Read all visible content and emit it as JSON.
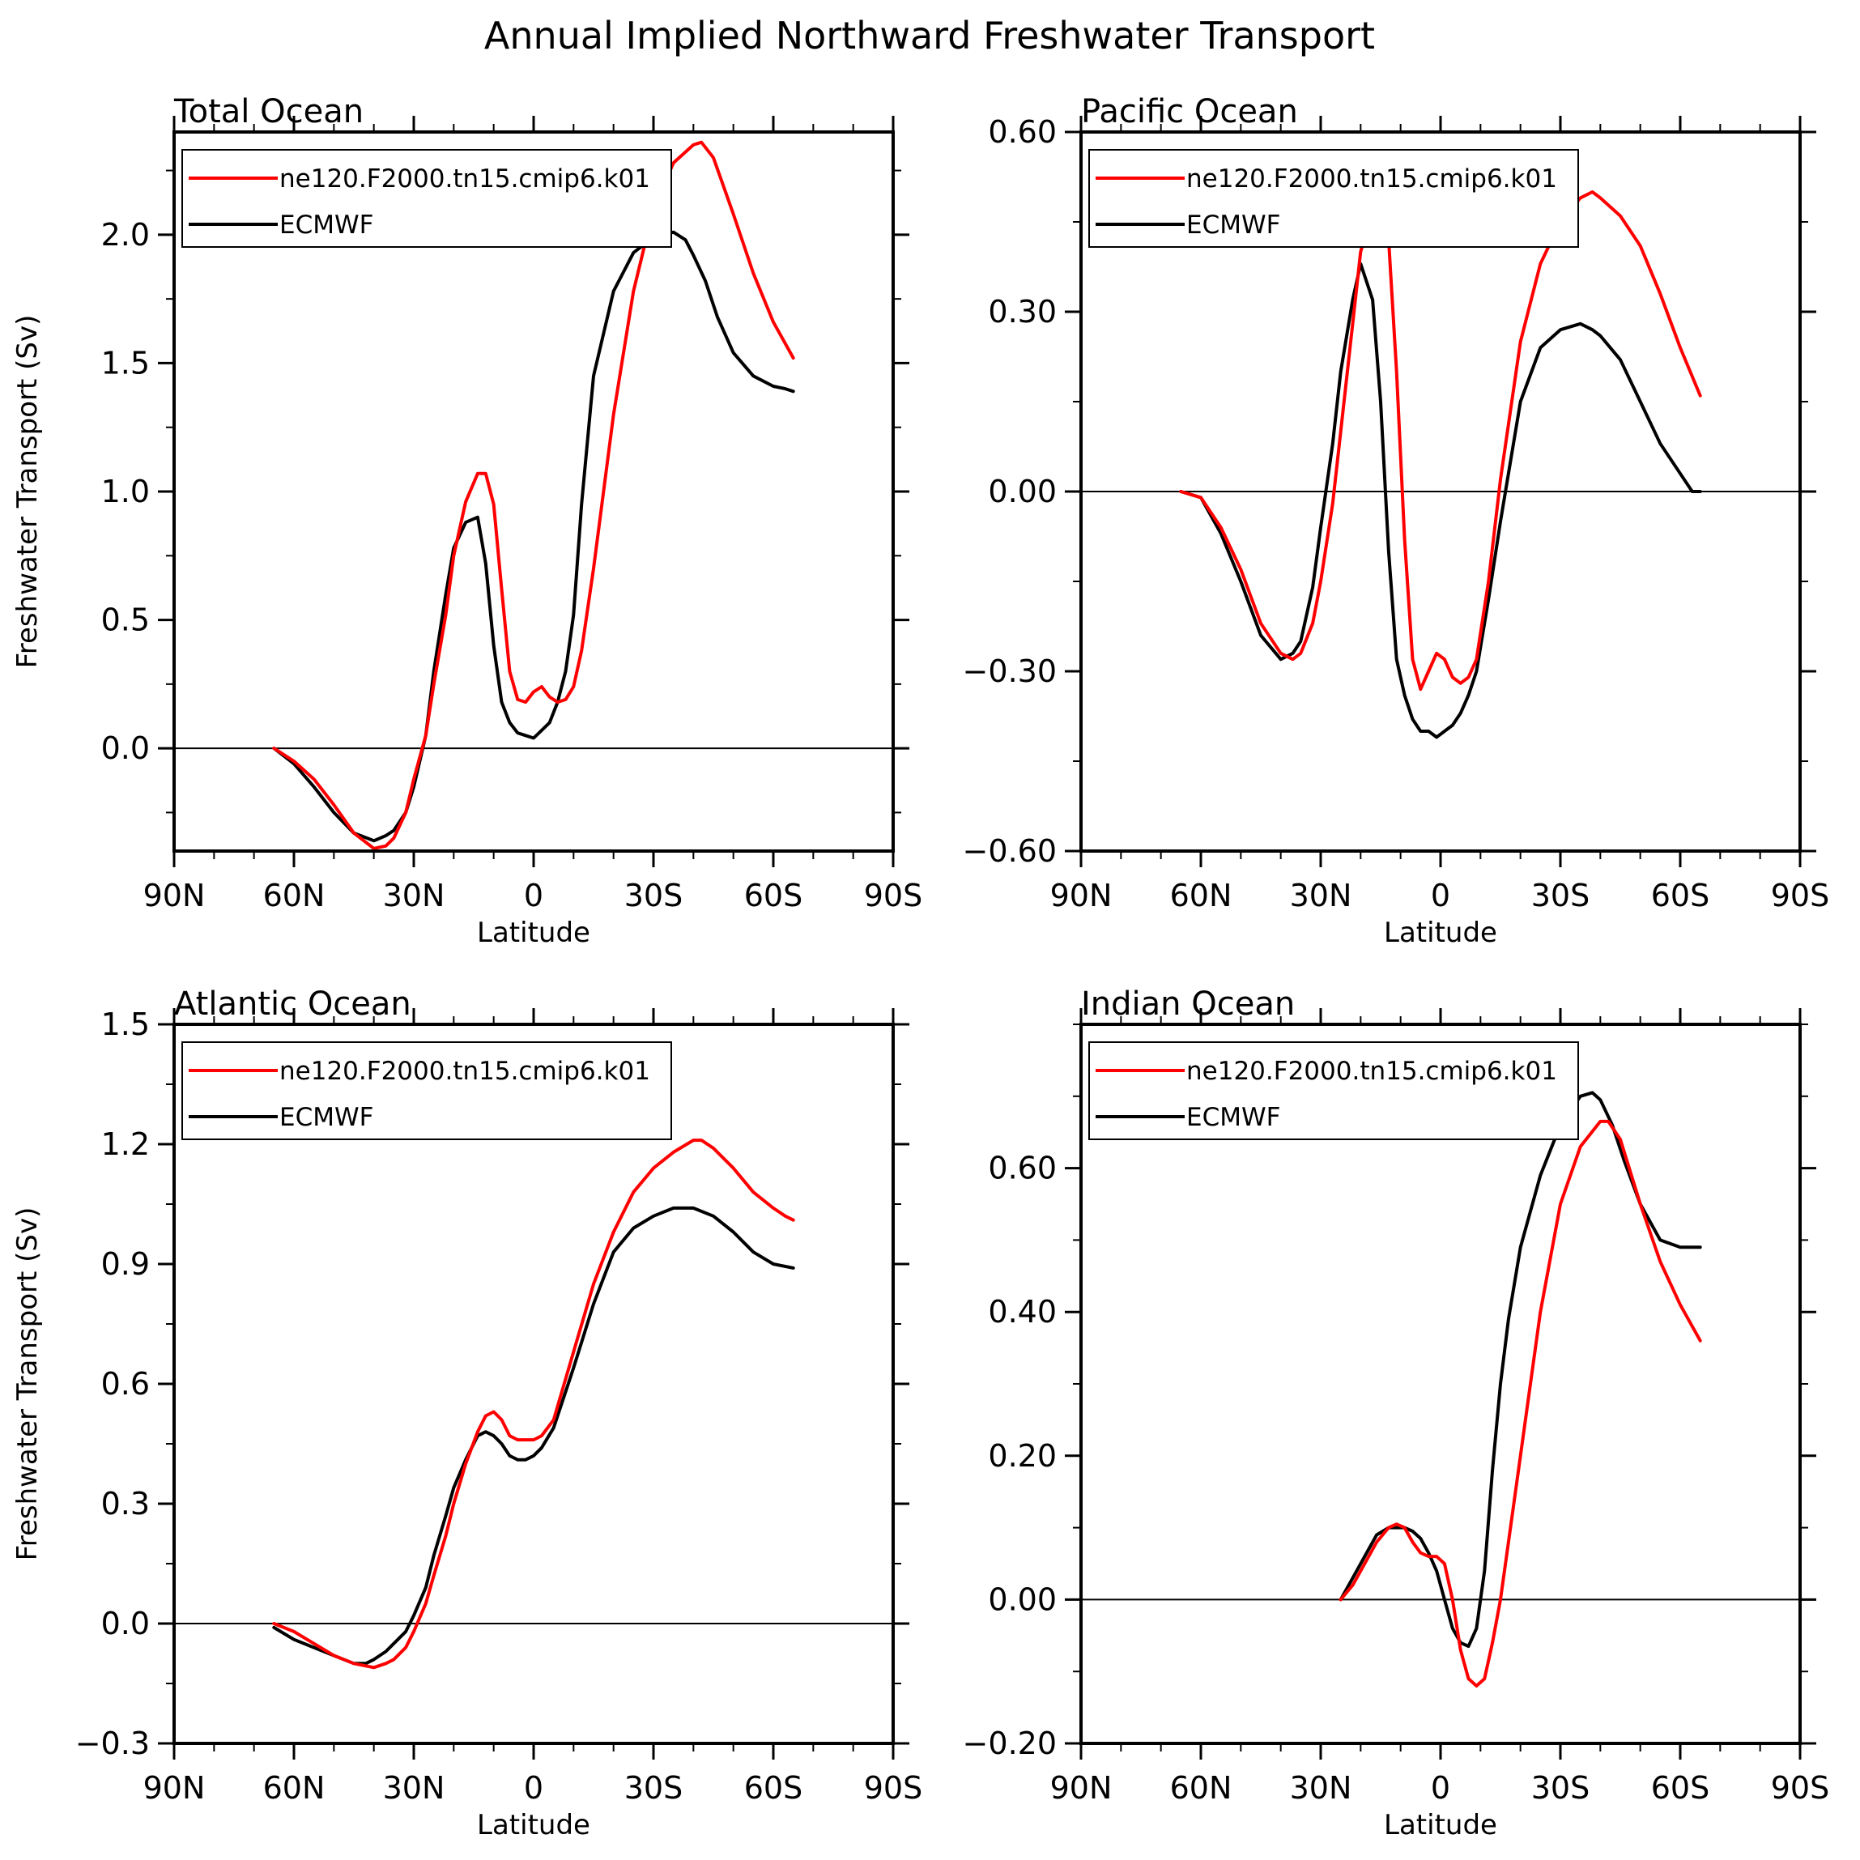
{
  "figure": {
    "title": "Annual Implied Northward Freshwater Transport"
  },
  "legend_entries": [
    {
      "label": "ne120.F2000.tn15.cmip6.k01",
      "color": "#ff0000"
    },
    {
      "label": "ECMWF",
      "color": "#000000"
    }
  ],
  "chart_data": [
    {
      "type": "line",
      "title": "Total Ocean",
      "xlabel": "Latitude",
      "ylabel": "Freshwater Transport (Sv)",
      "xlim": [
        90,
        -90
      ],
      "ylim": [
        -0.4,
        2.4
      ],
      "xticks": [
        90,
        60,
        30,
        0,
        -30,
        -60,
        -90
      ],
      "xtick_labels": [
        "90N",
        "60N",
        "30N",
        "0",
        "30S",
        "60S",
        "90S"
      ],
      "yticks": [
        0.0,
        0.5,
        1.0,
        1.5,
        2.0
      ],
      "ytick_labels": [
        "0.0",
        "0.5",
        "1.0",
        "1.5",
        "2.0"
      ],
      "ytick_side": "left",
      "grid": false,
      "zero_line": true,
      "legend_position": "top-left",
      "series": [
        {
          "name": "ne120.F2000.tn15.cmip6.k01",
          "color": "#ff0000",
          "x": [
            65,
            60,
            55,
            50,
            45,
            40,
            37,
            35,
            32,
            30,
            27,
            25,
            22,
            20,
            17,
            14,
            12,
            10,
            8,
            6,
            4,
            2,
            0,
            -2,
            -4,
            -6,
            -8,
            -10,
            -12,
            -15,
            -20,
            -25,
            -30,
            -35,
            -40,
            -42,
            -45,
            -50,
            -55,
            -60,
            -65
          ],
          "y": [
            0.0,
            -0.05,
            -0.12,
            -0.22,
            -0.33,
            -0.39,
            -0.38,
            -0.35,
            -0.25,
            -0.12,
            0.05,
            0.25,
            0.52,
            0.75,
            0.96,
            1.07,
            1.07,
            0.95,
            0.62,
            0.3,
            0.19,
            0.18,
            0.22,
            0.24,
            0.2,
            0.18,
            0.19,
            0.24,
            0.38,
            0.7,
            1.3,
            1.78,
            2.1,
            2.28,
            2.35,
            2.36,
            2.3,
            2.08,
            1.85,
            1.66,
            1.52
          ]
        },
        {
          "name": "ECMWF",
          "color": "#000000",
          "x": [
            65,
            60,
            55,
            50,
            45,
            40,
            37,
            35,
            32,
            30,
            27,
            25,
            22,
            20,
            17,
            14,
            12,
            10,
            8,
            6,
            4,
            2,
            0,
            -2,
            -4,
            -6,
            -8,
            -10,
            -12,
            -15,
            -20,
            -25,
            -30,
            -35,
            -38,
            -40,
            -43,
            -46,
            -50,
            -55,
            -60,
            -63,
            -65
          ],
          "y": [
            0.0,
            -0.06,
            -0.15,
            -0.25,
            -0.33,
            -0.36,
            -0.34,
            -0.32,
            -0.25,
            -0.15,
            0.05,
            0.3,
            0.6,
            0.78,
            0.88,
            0.9,
            0.72,
            0.4,
            0.18,
            0.1,
            0.06,
            0.05,
            0.04,
            0.07,
            0.1,
            0.18,
            0.3,
            0.52,
            0.95,
            1.45,
            1.78,
            1.93,
            1.99,
            2.01,
            1.98,
            1.92,
            1.82,
            1.68,
            1.54,
            1.45,
            1.41,
            1.4,
            1.39
          ]
        }
      ]
    },
    {
      "type": "line",
      "title": "Pacific Ocean",
      "xlabel": "Latitude",
      "ylabel": "",
      "xlim": [
        90,
        -90
      ],
      "ylim": [
        -0.6,
        0.6
      ],
      "xticks": [
        90,
        60,
        30,
        0,
        -30,
        -60,
        -90
      ],
      "xtick_labels": [
        "90N",
        "60N",
        "30N",
        "0",
        "30S",
        "60S",
        "90S"
      ],
      "yticks": [
        -0.6,
        -0.3,
        0.0,
        0.3,
        0.6
      ],
      "ytick_labels": [
        "−0.60",
        "−0.30",
        "0.00",
        "0.30",
        "0.60"
      ],
      "ytick_side": "left",
      "grid": false,
      "zero_line": true,
      "legend_position": "top-left",
      "series": [
        {
          "name": "ne120.F2000.tn15.cmip6.k01",
          "color": "#ff0000",
          "x": [
            65,
            60,
            55,
            50,
            45,
            40,
            37,
            35,
            32,
            30,
            27,
            25,
            22,
            20,
            17,
            15,
            13,
            11,
            9,
            7,
            5,
            3,
            1,
            -1,
            -3,
            -5,
            -7,
            -9,
            -12,
            -15,
            -20,
            -25,
            -30,
            -35,
            -38,
            -40,
            -45,
            -50,
            -55,
            -60,
            -65
          ],
          "y": [
            0.0,
            -0.01,
            -0.06,
            -0.13,
            -0.22,
            -0.27,
            -0.28,
            -0.27,
            -0.22,
            -0.15,
            -0.02,
            0.1,
            0.28,
            0.4,
            0.47,
            0.48,
            0.42,
            0.2,
            -0.08,
            -0.28,
            -0.33,
            -0.3,
            -0.27,
            -0.28,
            -0.31,
            -0.32,
            -0.31,
            -0.28,
            -0.15,
            0.02,
            0.25,
            0.38,
            0.45,
            0.49,
            0.5,
            0.49,
            0.46,
            0.41,
            0.33,
            0.24,
            0.16
          ]
        },
        {
          "name": "ECMWF",
          "color": "#000000",
          "x": [
            65,
            60,
            55,
            50,
            45,
            40,
            37,
            35,
            32,
            30,
            27,
            25,
            22,
            20,
            17,
            15,
            13,
            11,
            9,
            7,
            5,
            3,
            1,
            -1,
            -3,
            -5,
            -7,
            -9,
            -12,
            -15,
            -20,
            -25,
            -30,
            -35,
            -38,
            -40,
            -45,
            -50,
            -55,
            -60,
            -63,
            -65
          ],
          "y": [
            0.0,
            -0.01,
            -0.07,
            -0.15,
            -0.24,
            -0.28,
            -0.27,
            -0.25,
            -0.16,
            -0.06,
            0.08,
            0.2,
            0.32,
            0.38,
            0.32,
            0.15,
            -0.1,
            -0.28,
            -0.34,
            -0.38,
            -0.4,
            -0.4,
            -0.41,
            -0.4,
            -0.39,
            -0.37,
            -0.34,
            -0.3,
            -0.18,
            -0.05,
            0.15,
            0.24,
            0.27,
            0.28,
            0.27,
            0.26,
            0.22,
            0.15,
            0.08,
            0.03,
            0.0,
            0.0
          ]
        }
      ]
    },
    {
      "type": "line",
      "title": "Atlantic Ocean",
      "xlabel": "Latitude",
      "ylabel": "Freshwater Transport (Sv)",
      "xlim": [
        90,
        -90
      ],
      "ylim": [
        -0.3,
        1.5
      ],
      "xticks": [
        90,
        60,
        30,
        0,
        -30,
        -60,
        -90
      ],
      "xtick_labels": [
        "90N",
        "60N",
        "30N",
        "0",
        "30S",
        "60S",
        "90S"
      ],
      "yticks": [
        -0.3,
        0.0,
        0.3,
        0.6,
        0.9,
        1.2,
        1.5
      ],
      "ytick_labels": [
        "−0.3",
        "0.0",
        "0.3",
        "0.6",
        "0.9",
        "1.2",
        "1.5"
      ],
      "ytick_side": "left",
      "grid": false,
      "zero_line": true,
      "legend_position": "top-left",
      "series": [
        {
          "name": "ne120.F2000.tn15.cmip6.k01",
          "color": "#ff0000",
          "x": [
            65,
            60,
            55,
            50,
            45,
            40,
            37,
            35,
            32,
            30,
            27,
            25,
            22,
            20,
            17,
            14,
            12,
            10,
            8,
            6,
            4,
            2,
            0,
            -2,
            -5,
            -10,
            -15,
            -20,
            -25,
            -30,
            -35,
            -40,
            -42,
            -45,
            -50,
            -55,
            -60,
            -63,
            -65
          ],
          "y": [
            0.0,
            -0.02,
            -0.05,
            -0.08,
            -0.1,
            -0.11,
            -0.1,
            -0.09,
            -0.06,
            -0.02,
            0.05,
            0.12,
            0.22,
            0.3,
            0.4,
            0.48,
            0.52,
            0.53,
            0.51,
            0.47,
            0.46,
            0.46,
            0.46,
            0.47,
            0.51,
            0.68,
            0.85,
            0.98,
            1.08,
            1.14,
            1.18,
            1.21,
            1.21,
            1.19,
            1.14,
            1.08,
            1.04,
            1.02,
            1.01
          ]
        },
        {
          "name": "ECMWF",
          "color": "#000000",
          "x": [
            65,
            60,
            55,
            50,
            45,
            42,
            40,
            37,
            35,
            32,
            30,
            27,
            25,
            22,
            20,
            17,
            14,
            12,
            10,
            8,
            6,
            4,
            2,
            0,
            -2,
            -5,
            -10,
            -15,
            -20,
            -25,
            -30,
            -35,
            -38,
            -40,
            -45,
            -50,
            -55,
            -60,
            -65
          ],
          "y": [
            -0.01,
            -0.04,
            -0.06,
            -0.08,
            -0.1,
            -0.1,
            -0.09,
            -0.07,
            -0.05,
            -0.02,
            0.02,
            0.09,
            0.17,
            0.27,
            0.34,
            0.41,
            0.47,
            0.48,
            0.47,
            0.45,
            0.42,
            0.41,
            0.41,
            0.42,
            0.44,
            0.49,
            0.64,
            0.8,
            0.93,
            0.99,
            1.02,
            1.04,
            1.04,
            1.04,
            1.02,
            0.98,
            0.93,
            0.9,
            0.89
          ]
        }
      ]
    },
    {
      "type": "line",
      "title": "Indian Ocean",
      "xlabel": "Latitude",
      "ylabel": "",
      "xlim": [
        90,
        -90
      ],
      "ylim": [
        -0.2,
        0.8
      ],
      "xticks": [
        90,
        60,
        30,
        0,
        -30,
        -60,
        -90
      ],
      "xtick_labels": [
        "90N",
        "60N",
        "30N",
        "0",
        "30S",
        "60S",
        "90S"
      ],
      "yticks": [
        -0.2,
        0.0,
        0.2,
        0.4,
        0.6
      ],
      "ytick_labels": [
        "−0.20",
        "0.00",
        "0.20",
        "0.40",
        "0.60"
      ],
      "ytick_side": "left",
      "grid": false,
      "zero_line": true,
      "legend_position": "top-left",
      "series": [
        {
          "name": "ne120.F2000.tn15.cmip6.k01",
          "color": "#ff0000",
          "x": [
            25,
            22,
            19,
            16,
            13,
            11,
            9,
            7,
            5,
            3,
            1,
            -1,
            -3,
            -5,
            -7,
            -9,
            -11,
            -13,
            -15,
            -17,
            -20,
            -25,
            -30,
            -35,
            -40,
            -42,
            -45,
            -50,
            -55,
            -60,
            -65
          ],
          "y": [
            0.0,
            0.02,
            0.05,
            0.08,
            0.1,
            0.105,
            0.1,
            0.08,
            0.065,
            0.06,
            0.06,
            0.05,
            0.0,
            -0.07,
            -0.11,
            -0.12,
            -0.11,
            -0.06,
            0.0,
            0.08,
            0.2,
            0.4,
            0.55,
            0.63,
            0.665,
            0.665,
            0.64,
            0.55,
            0.47,
            0.41,
            0.36
          ]
        },
        {
          "name": "ECMWF",
          "color": "#000000",
          "x": [
            25,
            22,
            19,
            16,
            13,
            11,
            9,
            7,
            5,
            3,
            1,
            -1,
            -3,
            -5,
            -7,
            -9,
            -11,
            -13,
            -15,
            -17,
            -20,
            -25,
            -30,
            -35,
            -38,
            -40,
            -43,
            -46,
            -50,
            -55,
            -60,
            -63,
            -65
          ],
          "y": [
            0.0,
            0.03,
            0.06,
            0.09,
            0.1,
            0.1,
            0.1,
            0.095,
            0.085,
            0.065,
            0.04,
            0.0,
            -0.04,
            -0.06,
            -0.065,
            -0.04,
            0.04,
            0.18,
            0.3,
            0.39,
            0.49,
            0.59,
            0.66,
            0.7,
            0.705,
            0.695,
            0.66,
            0.61,
            0.55,
            0.5,
            0.49,
            0.49,
            0.49
          ]
        }
      ]
    }
  ]
}
